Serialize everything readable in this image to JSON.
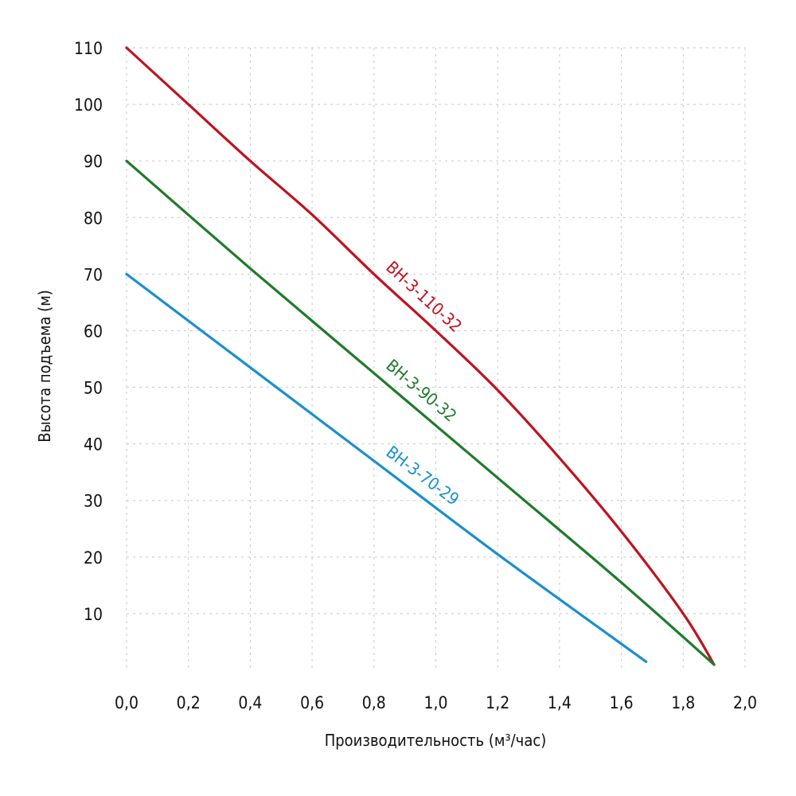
{
  "chart_data": {
    "type": "line",
    "xlabel": "Производительность (м³/час)",
    "ylabel": "Высота подъема (м)",
    "xlim": [
      0,
      2.0
    ],
    "ylim": [
      0,
      110
    ],
    "x_ticks": [
      "0,0",
      "0,2",
      "0,4",
      "0,6",
      "0,8",
      "1,0",
      "1,2",
      "1,4",
      "1,6",
      "1,8",
      "2,0"
    ],
    "y_ticks": [
      "10",
      "20",
      "30",
      "40",
      "50",
      "60",
      "70",
      "80",
      "90",
      "100",
      "110"
    ],
    "grid": true,
    "series": [
      {
        "name": "ВН-3-110-32",
        "color": "#c0121f",
        "x": [
          0.0,
          0.2,
          0.4,
          0.6,
          0.8,
          1.0,
          1.2,
          1.4,
          1.6,
          1.8,
          1.9
        ],
        "y": [
          110,
          100,
          90,
          80.5,
          70,
          60,
          49.5,
          37.5,
          24.5,
          10,
          1
        ]
      },
      {
        "name": "ВН-3-90-32",
        "color": "#1e7b2a",
        "x": [
          0.0,
          0.4,
          0.8,
          1.2,
          1.6,
          1.9
        ],
        "y": [
          90,
          71,
          52.5,
          34,
          15.5,
          1
        ]
      },
      {
        "name": "ВН-3-70-29",
        "color": "#1a8fd0",
        "x": [
          0.0,
          0.4,
          0.8,
          1.2,
          1.68
        ],
        "y": [
          70,
          53.5,
          37,
          20.5,
          1.5
        ]
      }
    ]
  }
}
